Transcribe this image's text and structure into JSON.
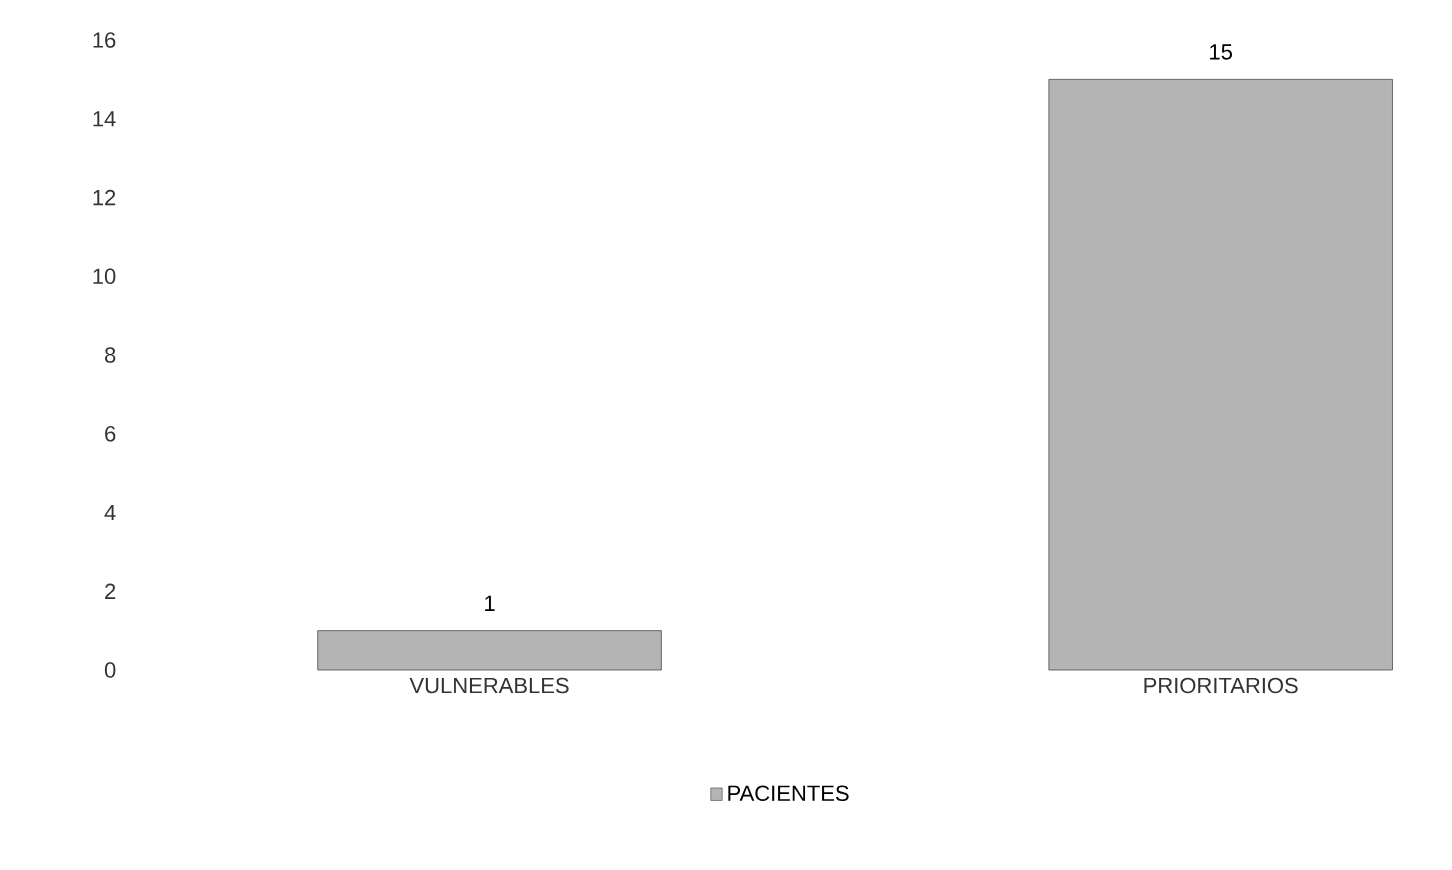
{
  "chart_data": {
    "type": "bar",
    "categories": [
      "VULNERABLES",
      "PRIORITARIOS"
    ],
    "series": [
      {
        "name": "PACIENTES",
        "color": "#b4b4b4",
        "values": [
          1,
          15
        ]
      }
    ],
    "ylim": [
      0,
      16
    ],
    "yticks": [
      0,
      2,
      4,
      6,
      8,
      10,
      12,
      14,
      16
    ],
    "data_labels": true,
    "legend": "bottom"
  }
}
